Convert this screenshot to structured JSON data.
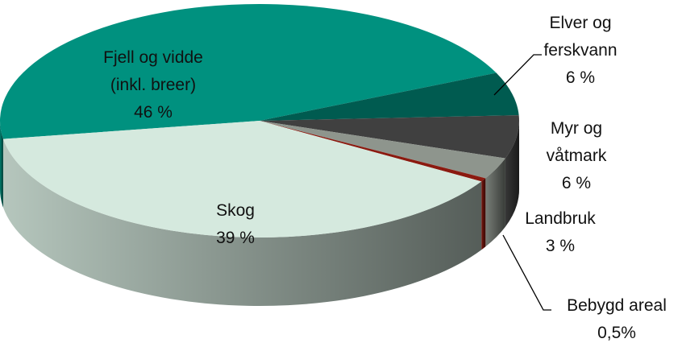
{
  "chart_data": {
    "type": "pie3d",
    "categories": [
      "Fjell og vidde (inkl. breer)",
      "Elver og ferskvann",
      "Myr og våtmark",
      "Landbruk",
      "Bebygd areal",
      "Skog"
    ],
    "values": [
      46,
      6,
      6,
      3,
      0.5,
      39
    ],
    "value_labels": [
      "46 %",
      "6 %",
      "6 %",
      "3 %",
      "0,5%",
      "39 %"
    ],
    "colors": [
      "#00917f",
      "#005b50",
      "#404040",
      "#8e958d",
      "#8b1a10",
      "#d5e9de"
    ]
  }
}
